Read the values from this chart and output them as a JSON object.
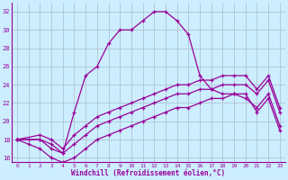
{
  "xlabel": "Windchill (Refroidissement éolien,°C)",
  "xlim": [
    -0.5,
    23.5
  ],
  "ylim": [
    15.5,
    33
  ],
  "yticks": [
    16,
    18,
    20,
    22,
    24,
    26,
    28,
    30,
    32
  ],
  "xticks": [
    0,
    1,
    2,
    3,
    4,
    5,
    6,
    7,
    8,
    9,
    10,
    11,
    12,
    13,
    14,
    15,
    16,
    17,
    18,
    19,
    20,
    21,
    22,
    23
  ],
  "bg_color": "#cceeff",
  "line_color": "#990099",
  "grid_color": "#aabbcc",
  "series": {
    "main": {
      "x": [
        0,
        1,
        2,
        3,
        4,
        5,
        6,
        7,
        8,
        9,
        10,
        11,
        12,
        13,
        14,
        15,
        16,
        17,
        18,
        19,
        20,
        21,
        22,
        23
      ],
      "y": [
        18,
        18,
        18,
        17,
        16.5,
        21,
        25,
        26,
        28.5,
        30,
        30,
        31,
        32,
        32,
        31,
        29.5,
        25,
        23.5,
        23,
        23,
        23,
        21,
        22.5,
        19
      ]
    },
    "line2": {
      "x": [
        0,
        1,
        2,
        3,
        4,
        5,
        6,
        7,
        8,
        9,
        10,
        11,
        12,
        13,
        14,
        15,
        16,
        17,
        18,
        19,
        20,
        21,
        22,
        23
      ],
      "y": [
        18,
        17.5,
        17,
        16,
        15.5,
        16,
        17,
        18,
        18.5,
        19,
        19.5,
        20,
        20.5,
        21,
        21.5,
        21.5,
        22,
        22.5,
        22.5,
        23,
        22.5,
        21.5,
        23,
        19.5
      ]
    },
    "line3": {
      "x": [
        0,
        2,
        3,
        4,
        5,
        6,
        7,
        8,
        9,
        10,
        11,
        12,
        13,
        14,
        15,
        16,
        17,
        18,
        19,
        20,
        21,
        22,
        23
      ],
      "y": [
        18,
        18,
        17.5,
        16.5,
        17.5,
        18.5,
        19.5,
        20,
        20.5,
        21,
        21.5,
        22,
        22.5,
        23,
        23,
        23.5,
        23.5,
        24,
        24,
        24,
        23,
        24.5,
        21
      ]
    },
    "line4": {
      "x": [
        0,
        2,
        3,
        4,
        5,
        6,
        7,
        8,
        9,
        10,
        11,
        12,
        13,
        14,
        15,
        16,
        17,
        18,
        19,
        20,
        21,
        22,
        23
      ],
      "y": [
        18,
        18.5,
        18,
        17,
        18.5,
        19.5,
        20.5,
        21,
        21.5,
        22,
        22.5,
        23,
        23.5,
        24,
        24,
        24.5,
        24.5,
        25,
        25,
        25,
        23.5,
        25,
        21.5
      ]
    }
  }
}
